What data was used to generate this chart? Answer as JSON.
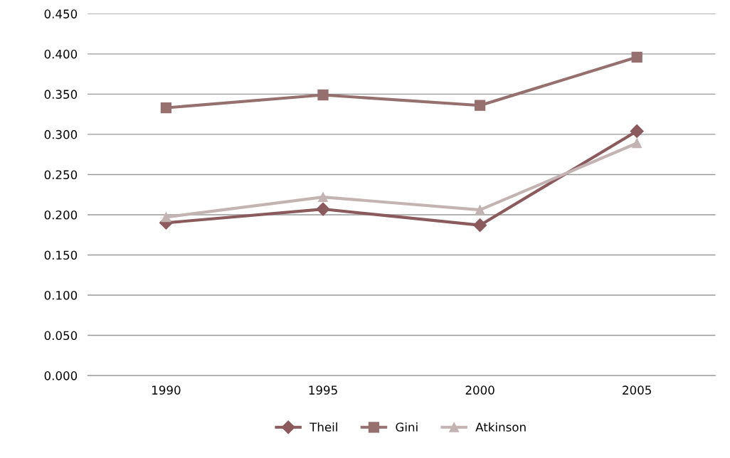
{
  "chart_data": {
    "type": "line",
    "categories": [
      "1990",
      "1995",
      "2000",
      "2005"
    ],
    "series": [
      {
        "name": "Theil",
        "color": "#8b5a5c",
        "marker": "diamond",
        "values": [
          0.19,
          0.207,
          0.187,
          0.304
        ]
      },
      {
        "name": "Gini",
        "color": "#96706f",
        "marker": "square",
        "values": [
          0.333,
          0.349,
          0.336,
          0.396
        ]
      },
      {
        "name": "Atkinson",
        "color": "#c4b3b3",
        "marker": "triangle",
        "values": [
          0.197,
          0.222,
          0.206,
          0.289
        ]
      }
    ],
    "ylim": [
      0,
      0.45
    ],
    "yticks": [
      {
        "value": 0,
        "label": "0.000"
      },
      {
        "value": 0.05,
        "label": "0.050"
      },
      {
        "value": 0.1,
        "label": "0.100"
      },
      {
        "value": 0.15,
        "label": "0.150"
      },
      {
        "value": 0.2,
        "label": "0.200"
      },
      {
        "value": 0.25,
        "label": "0.250"
      },
      {
        "value": 0.3,
        "label": "0.300"
      },
      {
        "value": 0.35,
        "label": "0.350"
      },
      {
        "value": 0.4,
        "label": "0.400"
      },
      {
        "value": 0.45,
        "label": "0.450"
      }
    ],
    "grid": "y",
    "legend": "bottom"
  }
}
